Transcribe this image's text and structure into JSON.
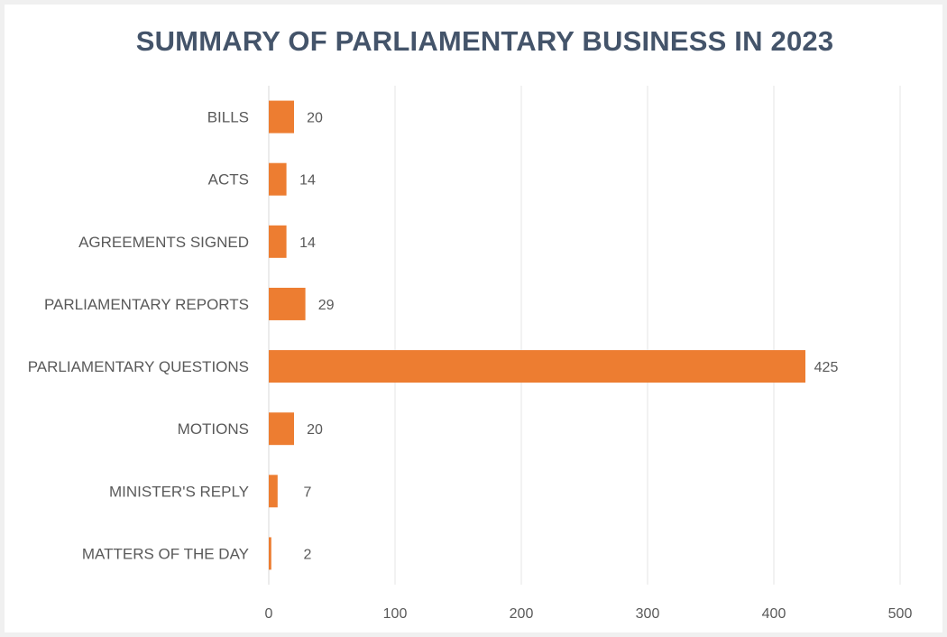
{
  "chart_data": {
    "type": "bar",
    "orientation": "horizontal",
    "title": "SUMMARY OF PARLIAMENTARY BUSINESS IN 2023",
    "categories": [
      "BILLS",
      "ACTS",
      "AGREEMENTS SIGNED",
      "PARLIAMENTARY REPORTS",
      "PARLIAMENTARY QUESTIONS",
      "MOTIONS",
      "MINISTER'S REPLY",
      "MATTERS OF THE DAY"
    ],
    "values": [
      20,
      14,
      14,
      29,
      425,
      20,
      7,
      2
    ],
    "xlim": [
      0,
      500
    ],
    "xticks": [
      0,
      100,
      200,
      300,
      400,
      500
    ],
    "xlabel": "",
    "ylabel": "",
    "grid": "vertical",
    "data_labels": true,
    "legend": "none",
    "bar_color": "#ed7d31"
  }
}
